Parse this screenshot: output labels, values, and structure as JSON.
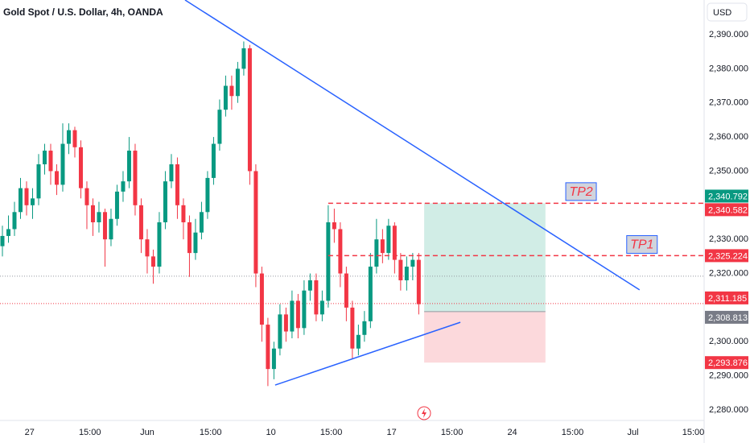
{
  "chart_data": {
    "type": "candlestick",
    "title": "Gold Spot / U.S. Dollar, 4h, OANDA",
    "currency": "USD",
    "up_color": "#089981",
    "down_color": "#f23645",
    "x": [
      0,
      1,
      2,
      3,
      4,
      5,
      6,
      7,
      8,
      9,
      10,
      11,
      12,
      13,
      14,
      15,
      16,
      17,
      18,
      19,
      20,
      21,
      22,
      23,
      24,
      25,
      26,
      27,
      28,
      29,
      30,
      31,
      32,
      33,
      34,
      35,
      36,
      37,
      38,
      39,
      40,
      41,
      42,
      43,
      44,
      45,
      46,
      47,
      48,
      49,
      50,
      51,
      52,
      53,
      54,
      55,
      56,
      57,
      58,
      59,
      60,
      61,
      62,
      63,
      64,
      65,
      66,
      67,
      68,
      69
    ],
    "series": {
      "open": [
        2328,
        2331,
        2333,
        2338,
        2345,
        2340,
        2342,
        2352,
        2356,
        2350,
        2346,
        2358,
        2362,
        2357,
        2345,
        2340,
        2335,
        2338,
        2330,
        2336,
        2344,
        2347,
        2356,
        2340,
        2330,
        2325,
        2322,
        2335,
        2347,
        2352,
        2340,
        2335,
        2326,
        2332,
        2338,
        2348,
        2358,
        2368,
        2375,
        2372,
        2380,
        2386,
        2350,
        2320,
        2305,
        2292,
        2298,
        2308,
        2303,
        2312,
        2304,
        2315,
        2318,
        2308,
        2312,
        2335,
        2333,
        2320,
        2310,
        2298,
        2302,
        2306,
        2322,
        2330,
        2326,
        2334,
        2324,
        2318,
        2322,
        2324
      ],
      "high": [
        2334,
        2337,
        2341,
        2348,
        2347,
        2345,
        2355,
        2358,
        2358,
        2352,
        2364,
        2364,
        2363,
        2359,
        2347,
        2342,
        2341,
        2339,
        2339,
        2346,
        2350,
        2360,
        2358,
        2342,
        2333,
        2327,
        2338,
        2350,
        2355,
        2354,
        2342,
        2337,
        2336,
        2341,
        2350,
        2360,
        2371,
        2378,
        2378,
        2382,
        2388,
        2387,
        2352,
        2322,
        2307,
        2300,
        2311,
        2310,
        2315,
        2314,
        2318,
        2320,
        2320,
        2315,
        2340,
        2339,
        2335,
        2322,
        2312,
        2305,
        2309,
        2326,
        2336,
        2333,
        2336,
        2335,
        2326,
        2325,
        2326,
        2326
      ],
      "low": [
        2325,
        2329,
        2331,
        2336,
        2337,
        2336,
        2340,
        2349,
        2346,
        2343,
        2344,
        2355,
        2354,
        2342,
        2333,
        2331,
        2332,
        2322,
        2328,
        2334,
        2341,
        2345,
        2337,
        2326,
        2320,
        2317,
        2320,
        2333,
        2345,
        2336,
        2330,
        2319,
        2324,
        2330,
        2336,
        2346,
        2356,
        2366,
        2368,
        2370,
        2378,
        2346,
        2316,
        2300,
        2287,
        2289,
        2296,
        2300,
        2301,
        2301,
        2302,
        2312,
        2306,
        2306,
        2310,
        2329,
        2316,
        2306,
        2295,
        2296,
        2300,
        2304,
        2320,
        2323,
        2324,
        2320,
        2315,
        2315,
        2318,
        2308
      ],
      "close": [
        2331,
        2333,
        2338,
        2345,
        2340,
        2342,
        2352,
        2356,
        2350,
        2346,
        2358,
        2362,
        2357,
        2345,
        2340,
        2335,
        2338,
        2330,
        2336,
        2344,
        2347,
        2356,
        2340,
        2330,
        2325,
        2322,
        2335,
        2347,
        2352,
        2340,
        2335,
        2326,
        2332,
        2338,
        2348,
        2358,
        2368,
        2375,
        2372,
        2380,
        2386,
        2350,
        2320,
        2305,
        2292,
        2298,
        2308,
        2303,
        2312,
        2304,
        2315,
        2318,
        2308,
        2312,
        2335,
        2333,
        2320,
        2310,
        2298,
        2302,
        2306,
        2322,
        2330,
        2326,
        2334,
        2324,
        2318,
        2322,
        2324,
        2311
      ]
    },
    "xlim": [
      -0.4,
      116.3
    ],
    "ylim": [
      2277.4,
      2400.15
    ],
    "xticks": [
      {
        "value": 4.5,
        "label": "27"
      },
      {
        "value": 14.5,
        "label": "15:00"
      },
      {
        "value": 24,
        "label": "Jun"
      },
      {
        "value": 34.5,
        "label": "15:00"
      },
      {
        "value": 44.5,
        "label": "10"
      },
      {
        "value": 54.5,
        "label": "15:00"
      },
      {
        "value": 64.5,
        "label": "17"
      },
      {
        "value": 74.5,
        "label": "15:00"
      },
      {
        "value": 84.5,
        "label": "24"
      },
      {
        "value": 94.5,
        "label": "15:00"
      },
      {
        "value": 104.5,
        "label": "Jul"
      },
      {
        "value": 114.5,
        "label": "15:00"
      }
    ],
    "yticks": [
      {
        "value": 2390,
        "label": "2,390.000"
      },
      {
        "value": 2380,
        "label": "2,380.000"
      },
      {
        "value": 2370,
        "label": "2,370.000"
      },
      {
        "value": 2360,
        "label": "2,360.000"
      },
      {
        "value": 2350,
        "label": "2,350.000"
      },
      {
        "value": 2330,
        "label": "2,330.000"
      },
      {
        "value": 2320,
        "label": "2,320.000"
      },
      {
        "value": 2300,
        "label": "2,300.000"
      },
      {
        "value": 2290,
        "label": "2,290.000"
      },
      {
        "value": 2280,
        "label": "2,280.000"
      }
    ],
    "grid": false,
    "trendlines": [
      {
        "x": [
          30.27,
          105.6
        ],
        "y": [
          2400.15,
          2315.2
        ],
        "color": "#2962ff"
      },
      {
        "x": [
          45.2,
          75.9
        ],
        "y": [
          2287.3,
          2305.7
        ],
        "color": "#2962ff"
      }
    ],
    "position": {
      "x": [
        69.9,
        90
      ],
      "entry": 2308.813,
      "target": 2340.582,
      "stop": 2293.876,
      "profit_color": "#d1ede6",
      "loss_color": "#fcd9dc"
    },
    "dotted_lines": [
      {
        "value": 2319.2,
        "color": "#9598a1"
      },
      {
        "value": 2311.185,
        "color": "#f23645"
      }
    ],
    "dashed_lines": [
      {
        "value": 2340.582,
        "x0": 54,
        "color": "#f23645"
      },
      {
        "value": 2325.224,
        "x0": 54,
        "color": "#f23645"
      }
    ],
    "text_labels": [
      {
        "text": "TP2",
        "x": 95.9,
        "y": 2344
      },
      {
        "text": "TP1",
        "x": 106,
        "y": 2328.5
      }
    ],
    "price_labels": [
      {
        "value": 2340.792,
        "label": "2,340.792",
        "color": "#089981"
      },
      {
        "value": 2340.582,
        "label": "2,340.582",
        "color": "#f23645"
      },
      {
        "value": 2325.224,
        "label": "2,325.224",
        "color": "#f23645"
      },
      {
        "value": 2311.185,
        "label": "2,311.185",
        "color": "#f23645"
      },
      {
        "value": 2308.813,
        "label": "2,308.813",
        "color": "#787b86"
      },
      {
        "value": 2293.876,
        "label": "2,293.876",
        "color": "#f23645"
      }
    ]
  }
}
